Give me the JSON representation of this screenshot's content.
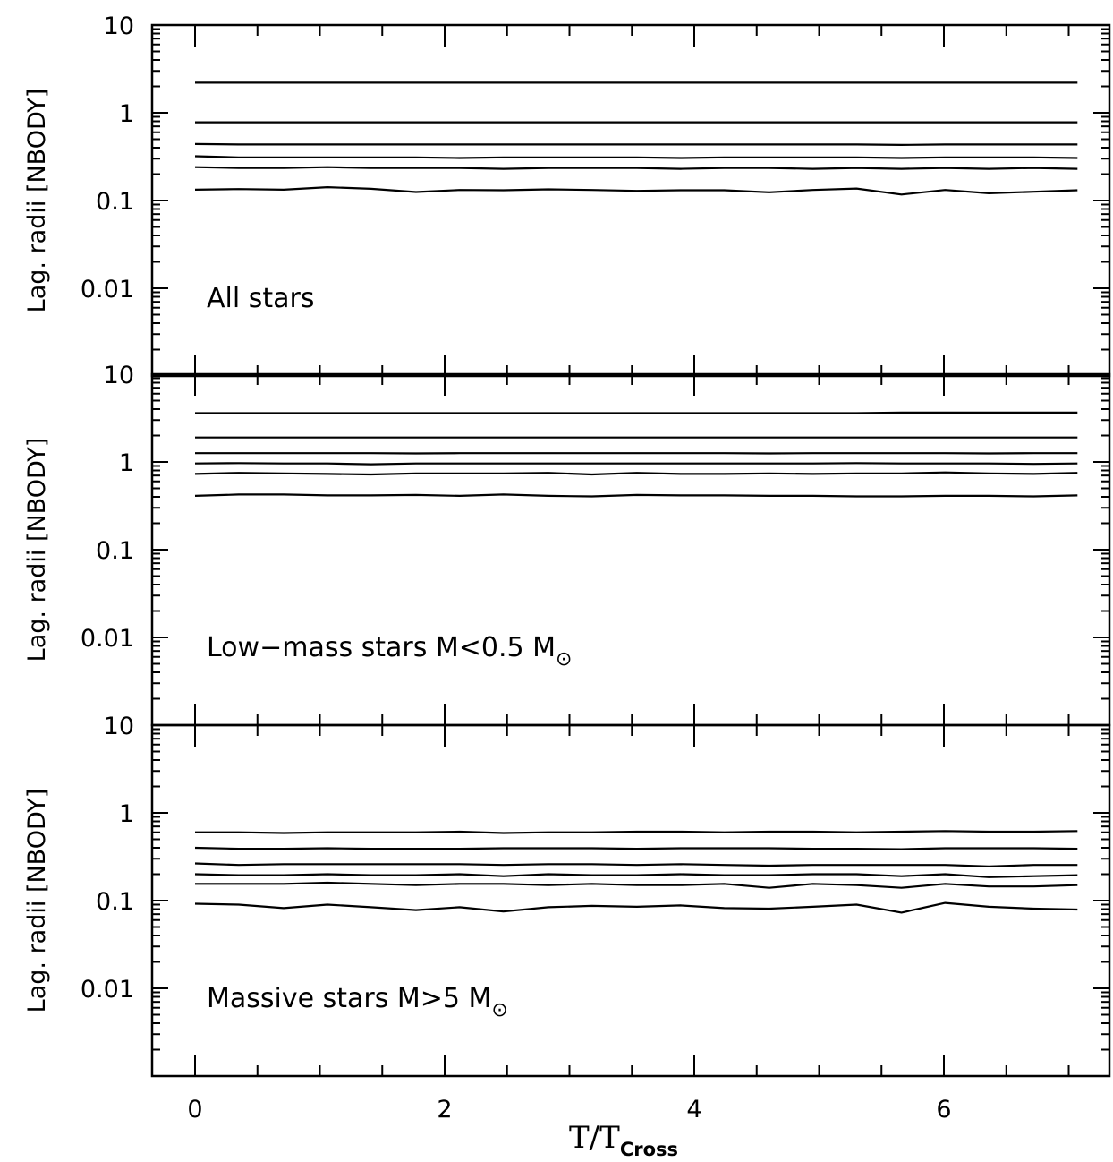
{
  "chart_data": [
    {
      "type": "line",
      "label": "All stars",
      "label_sub": "",
      "ylabel": "Lag. radii [NBODY]",
      "xlabel": "",
      "yscale": "log",
      "ylim": [
        0.001,
        10
      ],
      "xlim": [
        -0.35,
        7.4
      ],
      "x_ticks": [
        "0",
        "2",
        "4",
        "6"
      ],
      "y_ticks": [
        "0.01",
        "0.1",
        "1",
        "10"
      ],
      "x": [
        0,
        0.35,
        0.71,
        1.06,
        1.41,
        1.77,
        2.12,
        2.47,
        2.83,
        3.18,
        3.54,
        3.89,
        4.24,
        4.6,
        4.95,
        5.3,
        5.66,
        6.01,
        6.36,
        6.72,
        7.07
      ],
      "series": [
        {
          "values": [
            2.2,
            2.2,
            2.2,
            2.2,
            2.2,
            2.2,
            2.2,
            2.2,
            2.2,
            2.2,
            2.2,
            2.2,
            2.2,
            2.2,
            2.2,
            2.2,
            2.2,
            2.2,
            2.2,
            2.2,
            2.2
          ]
        },
        {
          "values": [
            0.78,
            0.78,
            0.78,
            0.78,
            0.78,
            0.78,
            0.78,
            0.78,
            0.78,
            0.78,
            0.78,
            0.78,
            0.78,
            0.78,
            0.78,
            0.78,
            0.78,
            0.78,
            0.78,
            0.78,
            0.78
          ]
        },
        {
          "values": [
            0.44,
            0.435,
            0.435,
            0.435,
            0.435,
            0.435,
            0.435,
            0.435,
            0.435,
            0.435,
            0.435,
            0.435,
            0.435,
            0.435,
            0.435,
            0.435,
            0.43,
            0.435,
            0.435,
            0.435,
            0.435
          ]
        },
        {
          "values": [
            0.32,
            0.31,
            0.31,
            0.31,
            0.31,
            0.31,
            0.305,
            0.31,
            0.31,
            0.31,
            0.31,
            0.305,
            0.31,
            0.31,
            0.31,
            0.31,
            0.305,
            0.31,
            0.31,
            0.31,
            0.305
          ]
        },
        {
          "values": [
            0.24,
            0.235,
            0.235,
            0.24,
            0.235,
            0.235,
            0.235,
            0.23,
            0.235,
            0.235,
            0.235,
            0.23,
            0.235,
            0.235,
            0.23,
            0.235,
            0.23,
            0.235,
            0.23,
            0.235,
            0.23
          ]
        },
        {
          "values": [
            0.133,
            0.135,
            0.133,
            0.142,
            0.136,
            0.125,
            0.132,
            0.131,
            0.134,
            0.132,
            0.129,
            0.131,
            0.131,
            0.124,
            0.132,
            0.137,
            0.117,
            0.132,
            0.121,
            0.126,
            0.131
          ]
        }
      ]
    },
    {
      "type": "line",
      "label": "Low−mass stars M<0.5 M",
      "label_sub": "⊙",
      "ylabel": "Lag. radii [NBODY]",
      "xlabel": "",
      "yscale": "log",
      "ylim": [
        0.001,
        10
      ],
      "xlim": [
        -0.35,
        7.4
      ],
      "x_ticks": [
        "0",
        "2",
        "4",
        "6"
      ],
      "y_ticks": [
        "0.01",
        "0.1",
        "1",
        "10"
      ],
      "x": [
        0,
        0.35,
        0.71,
        1.06,
        1.41,
        1.77,
        2.12,
        2.47,
        2.83,
        3.18,
        3.54,
        3.89,
        4.24,
        4.6,
        4.95,
        5.3,
        5.66,
        6.01,
        6.36,
        6.72,
        7.07
      ],
      "series": [
        {
          "values": [
            3.6,
            3.6,
            3.6,
            3.6,
            3.6,
            3.6,
            3.6,
            3.6,
            3.6,
            3.6,
            3.6,
            3.6,
            3.6,
            3.6,
            3.6,
            3.6,
            3.65,
            3.65,
            3.65,
            3.65,
            3.65
          ]
        },
        {
          "values": [
            1.9,
            1.9,
            1.9,
            1.9,
            1.9,
            1.9,
            1.9,
            1.9,
            1.9,
            1.9,
            1.9,
            1.9,
            1.9,
            1.9,
            1.9,
            1.9,
            1.9,
            1.9,
            1.9,
            1.9,
            1.9
          ]
        },
        {
          "values": [
            1.26,
            1.26,
            1.26,
            1.26,
            1.26,
            1.25,
            1.26,
            1.26,
            1.26,
            1.26,
            1.26,
            1.26,
            1.26,
            1.25,
            1.26,
            1.26,
            1.26,
            1.26,
            1.25,
            1.26,
            1.26
          ]
        },
        {
          "values": [
            0.96,
            0.97,
            0.96,
            0.96,
            0.94,
            0.96,
            0.96,
            0.96,
            0.96,
            0.96,
            0.96,
            0.96,
            0.96,
            0.96,
            0.96,
            0.97,
            0.96,
            0.96,
            0.96,
            0.95,
            0.96
          ]
        },
        {
          "values": [
            0.73,
            0.75,
            0.74,
            0.73,
            0.72,
            0.74,
            0.74,
            0.74,
            0.75,
            0.72,
            0.75,
            0.73,
            0.73,
            0.74,
            0.73,
            0.74,
            0.74,
            0.76,
            0.74,
            0.73,
            0.75
          ]
        },
        {
          "values": [
            0.41,
            0.425,
            0.425,
            0.415,
            0.415,
            0.42,
            0.41,
            0.425,
            0.41,
            0.405,
            0.42,
            0.415,
            0.415,
            0.41,
            0.41,
            0.405,
            0.405,
            0.41,
            0.41,
            0.405,
            0.415
          ]
        }
      ]
    },
    {
      "type": "line",
      "label": "Massive stars M>5 M",
      "label_sub": "⊙",
      "ylabel": "Lag. radii [NBODY]",
      "xlabel": "T/T",
      "xlabel_sub": "Cross",
      "yscale": "log",
      "ylim": [
        0.001,
        10
      ],
      "xlim": [
        -0.35,
        7.4
      ],
      "x_ticks": [
        "0",
        "2",
        "4",
        "6"
      ],
      "y_ticks": [
        "0.01",
        "0.1",
        "1",
        "10"
      ],
      "x": [
        0,
        0.35,
        0.71,
        1.06,
        1.41,
        1.77,
        2.12,
        2.47,
        2.83,
        3.18,
        3.54,
        3.89,
        4.24,
        4.6,
        4.95,
        5.3,
        5.66,
        6.01,
        6.36,
        6.72,
        7.07
      ],
      "series": [
        {
          "values": [
            0.6,
            0.6,
            0.59,
            0.6,
            0.6,
            0.6,
            0.61,
            0.59,
            0.6,
            0.6,
            0.61,
            0.61,
            0.6,
            0.61,
            0.61,
            0.6,
            0.61,
            0.62,
            0.61,
            0.61,
            0.62
          ]
        },
        {
          "values": [
            0.4,
            0.39,
            0.39,
            0.395,
            0.39,
            0.39,
            0.39,
            0.395,
            0.395,
            0.395,
            0.39,
            0.395,
            0.395,
            0.395,
            0.39,
            0.39,
            0.385,
            0.395,
            0.395,
            0.395,
            0.39
          ]
        },
        {
          "values": [
            0.265,
            0.255,
            0.26,
            0.26,
            0.26,
            0.26,
            0.26,
            0.255,
            0.26,
            0.26,
            0.255,
            0.26,
            0.255,
            0.25,
            0.255,
            0.255,
            0.255,
            0.255,
            0.245,
            0.255,
            0.255
          ]
        },
        {
          "values": [
            0.2,
            0.195,
            0.195,
            0.2,
            0.195,
            0.195,
            0.2,
            0.19,
            0.2,
            0.195,
            0.195,
            0.2,
            0.195,
            0.195,
            0.2,
            0.2,
            0.19,
            0.2,
            0.185,
            0.19,
            0.195
          ]
        },
        {
          "values": [
            0.155,
            0.155,
            0.155,
            0.16,
            0.155,
            0.15,
            0.155,
            0.155,
            0.15,
            0.155,
            0.15,
            0.15,
            0.155,
            0.14,
            0.155,
            0.15,
            0.14,
            0.155,
            0.145,
            0.145,
            0.15
          ]
        },
        {
          "values": [
            0.092,
            0.09,
            0.082,
            0.09,
            0.084,
            0.078,
            0.084,
            0.075,
            0.084,
            0.087,
            0.085,
            0.088,
            0.082,
            0.081,
            0.085,
            0.09,
            0.073,
            0.094,
            0.085,
            0.081,
            0.079
          ]
        }
      ]
    }
  ]
}
